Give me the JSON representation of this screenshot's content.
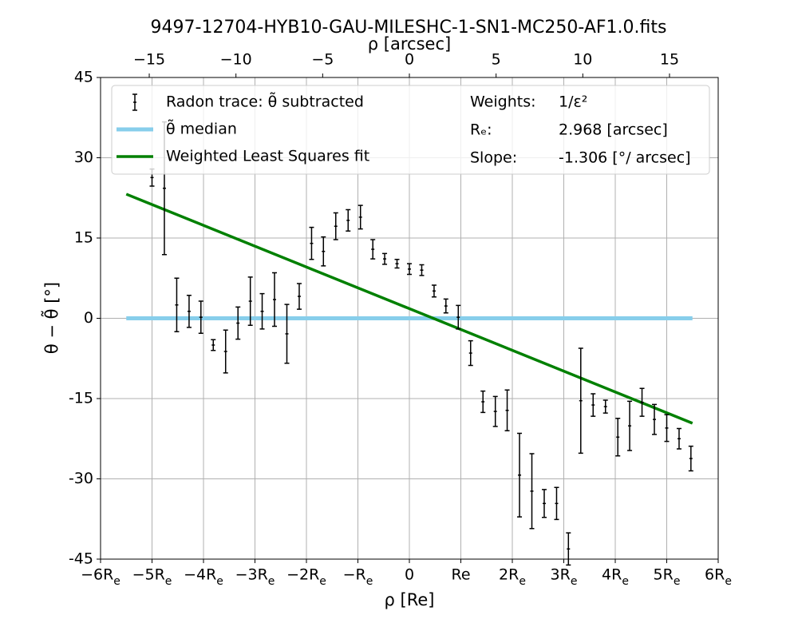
{
  "chart_data": {
    "type": "errorbar",
    "title": "9497-12704-HYB10-GAU-MILESHC-1-SN1-MC250-AF1.0.fits",
    "xlabel": "ρ [Re]",
    "ylabel": "θ − θ̃ [°]",
    "x2label": "ρ [arcsec]",
    "xlim": [
      -6,
      6
    ],
    "xticks": [
      {
        "value": -6,
        "label": "−6Re"
      },
      {
        "value": -5,
        "label": "−5Re"
      },
      {
        "value": -4,
        "label": "−4Re"
      },
      {
        "value": -3,
        "label": "−3Re"
      },
      {
        "value": -2,
        "label": "−2Re"
      },
      {
        "value": -1,
        "label": "−Re"
      },
      0,
      {
        "value": 1,
        "label": "Re"
      },
      {
        "value": 2,
        "label": "2Re"
      },
      {
        "value": 3,
        "label": "3Re"
      },
      {
        "value": 4,
        "label": "4Re"
      },
      {
        "value": 5,
        "label": "5Re"
      },
      {
        "value": 6,
        "label": "6Re"
      }
    ],
    "x2lim": [
      -17.808,
      17.808
    ],
    "x2ticks": [
      {
        "value": -15,
        "label": "−15"
      },
      {
        "value": -10,
        "label": "−10"
      },
      {
        "value": -5,
        "label": "−5"
      },
      0,
      5,
      10,
      15
    ],
    "ylim": [
      -45,
      45
    ],
    "yticks": [
      -45,
      -30,
      -15,
      0,
      15,
      30,
      45
    ],
    "grid": true,
    "legend": "upper right",
    "series": [
      {
        "name": "Radon trace: θ̃ subtracted",
        "color": "#000000",
        "kind": "errorbar",
        "x": [
          -5.0,
          -4.76,
          -4.52,
          -4.28,
          -4.05,
          -3.81,
          -3.57,
          -3.33,
          -3.09,
          -2.86,
          -2.62,
          -2.38,
          -2.14,
          -1.9,
          -1.67,
          -1.43,
          -1.19,
          -0.95,
          -0.71,
          -0.48,
          -0.24,
          0,
          0.24,
          0.48,
          0.71,
          0.95,
          1.19,
          1.43,
          1.67,
          1.9,
          2.14,
          2.38,
          2.62,
          2.86,
          3.09,
          3.33,
          3.57,
          3.81,
          4.05,
          4.28,
          4.52,
          4.76,
          5.0,
          5.24,
          5.47
        ],
        "values": [
          26.3,
          24.3,
          2.5,
          1.3,
          0.2,
          -5,
          -6.2,
          -0.9,
          3.2,
          1.3,
          3.5,
          -2.9,
          4.1,
          14,
          12.5,
          17.2,
          18.3,
          18.9,
          12.9,
          11.1,
          10.2,
          9.2,
          9,
          5.1,
          2.3,
          0.2,
          -6.5,
          -15.6,
          -17.4,
          -17.2,
          -29.3,
          -32.3,
          -34.6,
          -34.6,
          -43.1,
          -15.4,
          -16.2,
          -16.5,
          -22.2,
          -20.1,
          -15.7,
          -18.9,
          -20.5,
          -22.5,
          -26.2
        ],
        "errors": [
          1.6,
          12.4,
          5,
          3,
          3,
          1,
          4,
          3,
          4.5,
          3.3,
          5,
          5.5,
          2.4,
          3,
          2.7,
          2.5,
          2,
          2.2,
          1.8,
          1,
          0.8,
          1,
          1,
          1.1,
          1.3,
          2.2,
          2.3,
          2,
          2.8,
          3.8,
          7.8,
          7,
          2.6,
          3,
          3,
          9.8,
          2.1,
          1.2,
          3.5,
          4.6,
          2.6,
          2.8,
          2.5,
          1.9,
          2.3
        ]
      },
      {
        "name": "θ̃ median",
        "color": "#87ceeb",
        "kind": "line",
        "width": 5,
        "x": [
          -5.5,
          5.5
        ],
        "values": [
          0,
          0
        ]
      },
      {
        "name": "Weighted Least Squares fit",
        "color": "#008000",
        "kind": "line",
        "width": 3.5,
        "x": [
          -5.5,
          5.5
        ],
        "values": [
          23.2,
          -19.6
        ]
      }
    ],
    "annotations": [
      "Weights:",
      "1/ε²",
      "Rₑ:",
      "2.968 [arcsec]",
      "Slope:",
      "-1.306 [°/ arcsec]"
    ]
  }
}
